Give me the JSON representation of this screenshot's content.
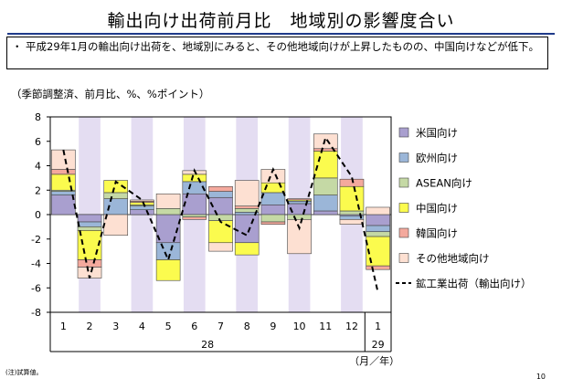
{
  "title": "輸出向け出荷前月比　地域別の影響度合い",
  "summary": {
    "bullet": "・",
    "text": "平成29年1月の輸出向け出荷を、地域別にみると、その他地域向けが上昇したものの、中国向けなどが低下。"
  },
  "unit_label": "（季節調整済、前月比、%、%ポイント）",
  "note": "(注)試算値。",
  "page_number": "10",
  "colors": {
    "shade": "#e4ddf2",
    "title_rule": "#1f3a8a",
    "line": "#000000",
    "bar_stroke": "#444444"
  },
  "chart_data": {
    "type": "bar",
    "stacked": true,
    "categories": [
      "1",
      "2",
      "3",
      "4",
      "5",
      "6",
      "7",
      "8",
      "9",
      "10",
      "11",
      "12",
      "1"
    ],
    "year_labels": [
      "28",
      "29"
    ],
    "period_unit": "（月／年）",
    "ylim": [
      -8,
      8
    ],
    "yticks": [
      8,
      6,
      4,
      2,
      0,
      -2,
      -4,
      -6,
      -8
    ],
    "shaded_categories": [
      1,
      3,
      5,
      7,
      9,
      11
    ],
    "series": [
      {
        "name": "米国向け",
        "color": "#a99fcf",
        "values": [
          1.6,
          -0.6,
          0.0,
          0.4,
          -2.3,
          1.7,
          1.4,
          -2.3,
          0.8,
          0.9,
          0.3,
          -0.1,
          -0.9
        ]
      },
      {
        "name": "欧州向け",
        "color": "#9bb6d8",
        "values": [
          0.3,
          -0.4,
          1.3,
          0.3,
          -1.4,
          1.0,
          0.5,
          0.2,
          1.0,
          0.2,
          1.3,
          -0.3,
          -0.5
        ]
      },
      {
        "name": "ASEAN向け",
        "color": "#c5d9a5",
        "values": [
          0.1,
          -0.3,
          0.5,
          0.1,
          0.5,
          -0.2,
          -0.5,
          0.3,
          -0.6,
          -0.4,
          1.4,
          0.3,
          -0.4
        ]
      },
      {
        "name": "中国向け",
        "color": "#fbfb4e",
        "values": [
          1.3,
          -2.4,
          1.0,
          0.2,
          -1.7,
          0.6,
          -1.8,
          -1.0,
          0.8,
          0.1,
          2.2,
          2.0,
          -2.4
        ]
      },
      {
        "name": "韓国向け",
        "color": "#f4a99d",
        "values": [
          0.4,
          -0.6,
          0.0,
          0.1,
          0.0,
          -0.2,
          0.4,
          0.2,
          -0.2,
          0.1,
          0.2,
          0.6,
          -0.3
        ]
      },
      {
        "name": "その他地域向け",
        "color": "#fde0d2",
        "values": [
          1.6,
          -0.9,
          -1.7,
          0.1,
          1.2,
          0.3,
          -0.7,
          2.1,
          1.1,
          -2.8,
          1.2,
          -0.4,
          0.6
        ]
      }
    ],
    "line_series": {
      "name": "鉱工業出荷（輸出向け）",
      "style": "dashed",
      "values": [
        5.3,
        -5.2,
        2.7,
        1.2,
        -3.7,
        3.6,
        -0.6,
        -1.7,
        3.7,
        -1.1,
        6.3,
        3.1,
        -6.4
      ]
    }
  }
}
